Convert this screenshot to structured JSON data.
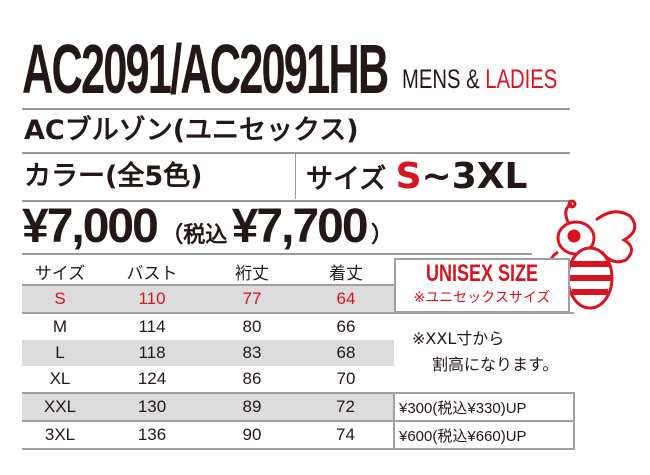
{
  "header": {
    "model": "AC2091/AC2091HB",
    "gender_mens": "MENS &",
    "gender_ladies": "LADIES"
  },
  "product_name": "ACブルゾン(ユニセックス)",
  "colors": "カラー(全5色)",
  "sizes": {
    "label": "サイズ",
    "start": "S",
    "range": "~3XL"
  },
  "price": {
    "base": "¥7,000",
    "tax_open": "（税込",
    "tax_price": "¥7,700",
    "tax_close": "）"
  },
  "accent_color": "#d7141f",
  "table": {
    "headers": [
      "サイズ",
      "バスト",
      "裄丈",
      "着丈"
    ],
    "rows": [
      [
        "S",
        "110",
        "77",
        "64"
      ],
      [
        "M",
        "114",
        "80",
        "66"
      ],
      [
        "L",
        "118",
        "83",
        "68"
      ],
      [
        "XL",
        "124",
        "86",
        "70"
      ],
      [
        "XXL",
        "130",
        "89",
        "72"
      ],
      [
        "3XL",
        "136",
        "90",
        "74"
      ]
    ],
    "surcharges": {
      "xxl": "¥300(税込¥330)UP",
      "3xl": "¥600(税込¥660)UP"
    }
  },
  "unisex": {
    "title": "UNISEX SIZE",
    "subtitle": "※ユニセックスサイズ"
  },
  "note": {
    "line1": "※XXL寸から",
    "line2": "割高になります。"
  },
  "mascot": "bee-mascot"
}
